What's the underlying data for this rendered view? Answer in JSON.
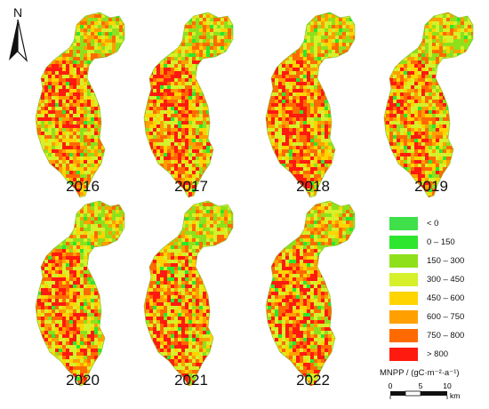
{
  "north_arrow": {
    "letter": "N",
    "icon": "north-arrow-icon"
  },
  "panels": [
    {
      "year": "2016"
    },
    {
      "year": "2017"
    },
    {
      "year": "2018"
    },
    {
      "year": "2019"
    },
    {
      "year": "2020"
    },
    {
      "year": "2021"
    },
    {
      "year": "2022"
    }
  ],
  "legend": {
    "title": "MNPP / (gC·m⁻²·a⁻¹)",
    "items": [
      {
        "label": "< 0",
        "color": "#3fe04a"
      },
      {
        "label": "0 – 150",
        "color": "#2ee62e"
      },
      {
        "label": "150 – 300",
        "color": "#8fe01c"
      },
      {
        "label": "300 – 450",
        "color": "#d6f02a"
      },
      {
        "label": "450 – 600",
        "color": "#ffd400"
      },
      {
        "label": "600 – 750",
        "color": "#ffa000"
      },
      {
        "label": "750 – 800",
        "color": "#ff6a00"
      },
      {
        "label": "> 800",
        "color": "#ff1a10"
      }
    ]
  },
  "scale_bar": {
    "ticks": [
      "0",
      "5",
      "10"
    ],
    "unit": "km"
  }
}
